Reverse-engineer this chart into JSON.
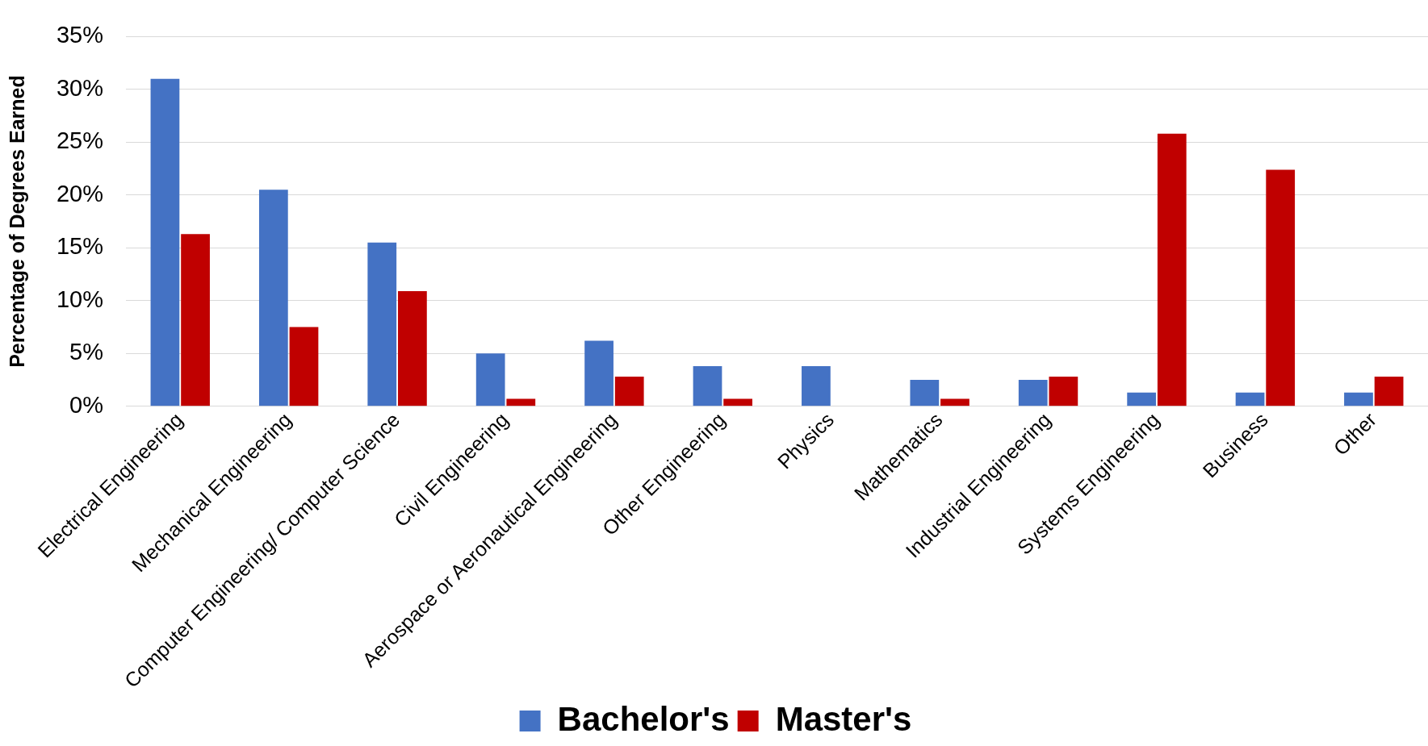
{
  "chart_data": {
    "type": "bar",
    "ylabel": "Percentage of Degrees Earned",
    "categories": [
      "Electrical Engineering",
      "Mechanical Engineering",
      "Computer Engineering/ Computer Science",
      "Civil Engineering",
      "Aerospace or Aeronautical Engineering",
      "Other Engineering",
      "Physics",
      "Mathematics",
      "Industrial Engineering",
      "Systems Engineering",
      "Business",
      "Other"
    ],
    "series": [
      {
        "name": "Bachelor's",
        "color": "#4472c4",
        "values": [
          31.0,
          20.5,
          15.5,
          5.0,
          6.2,
          3.8,
          3.8,
          2.5,
          2.5,
          1.3,
          1.3,
          1.3
        ]
      },
      {
        "name": "Master's",
        "color": "#c00000",
        "values": [
          16.3,
          7.5,
          10.9,
          0.7,
          2.8,
          0.7,
          0,
          0.7,
          2.8,
          25.8,
          22.4,
          2.8
        ]
      }
    ],
    "ylim": [
      0,
      35
    ],
    "yticks": [
      {
        "value": 0,
        "label": "0%"
      },
      {
        "value": 5,
        "label": "5%"
      },
      {
        "value": 10,
        "label": "10%"
      },
      {
        "value": 15,
        "label": "15%"
      },
      {
        "value": 20,
        "label": "20%"
      },
      {
        "value": 25,
        "label": "25%"
      },
      {
        "value": 30,
        "label": "30%"
      },
      {
        "value": 35,
        "label": "35%"
      }
    ],
    "grid": "y",
    "legend": "bottom"
  }
}
